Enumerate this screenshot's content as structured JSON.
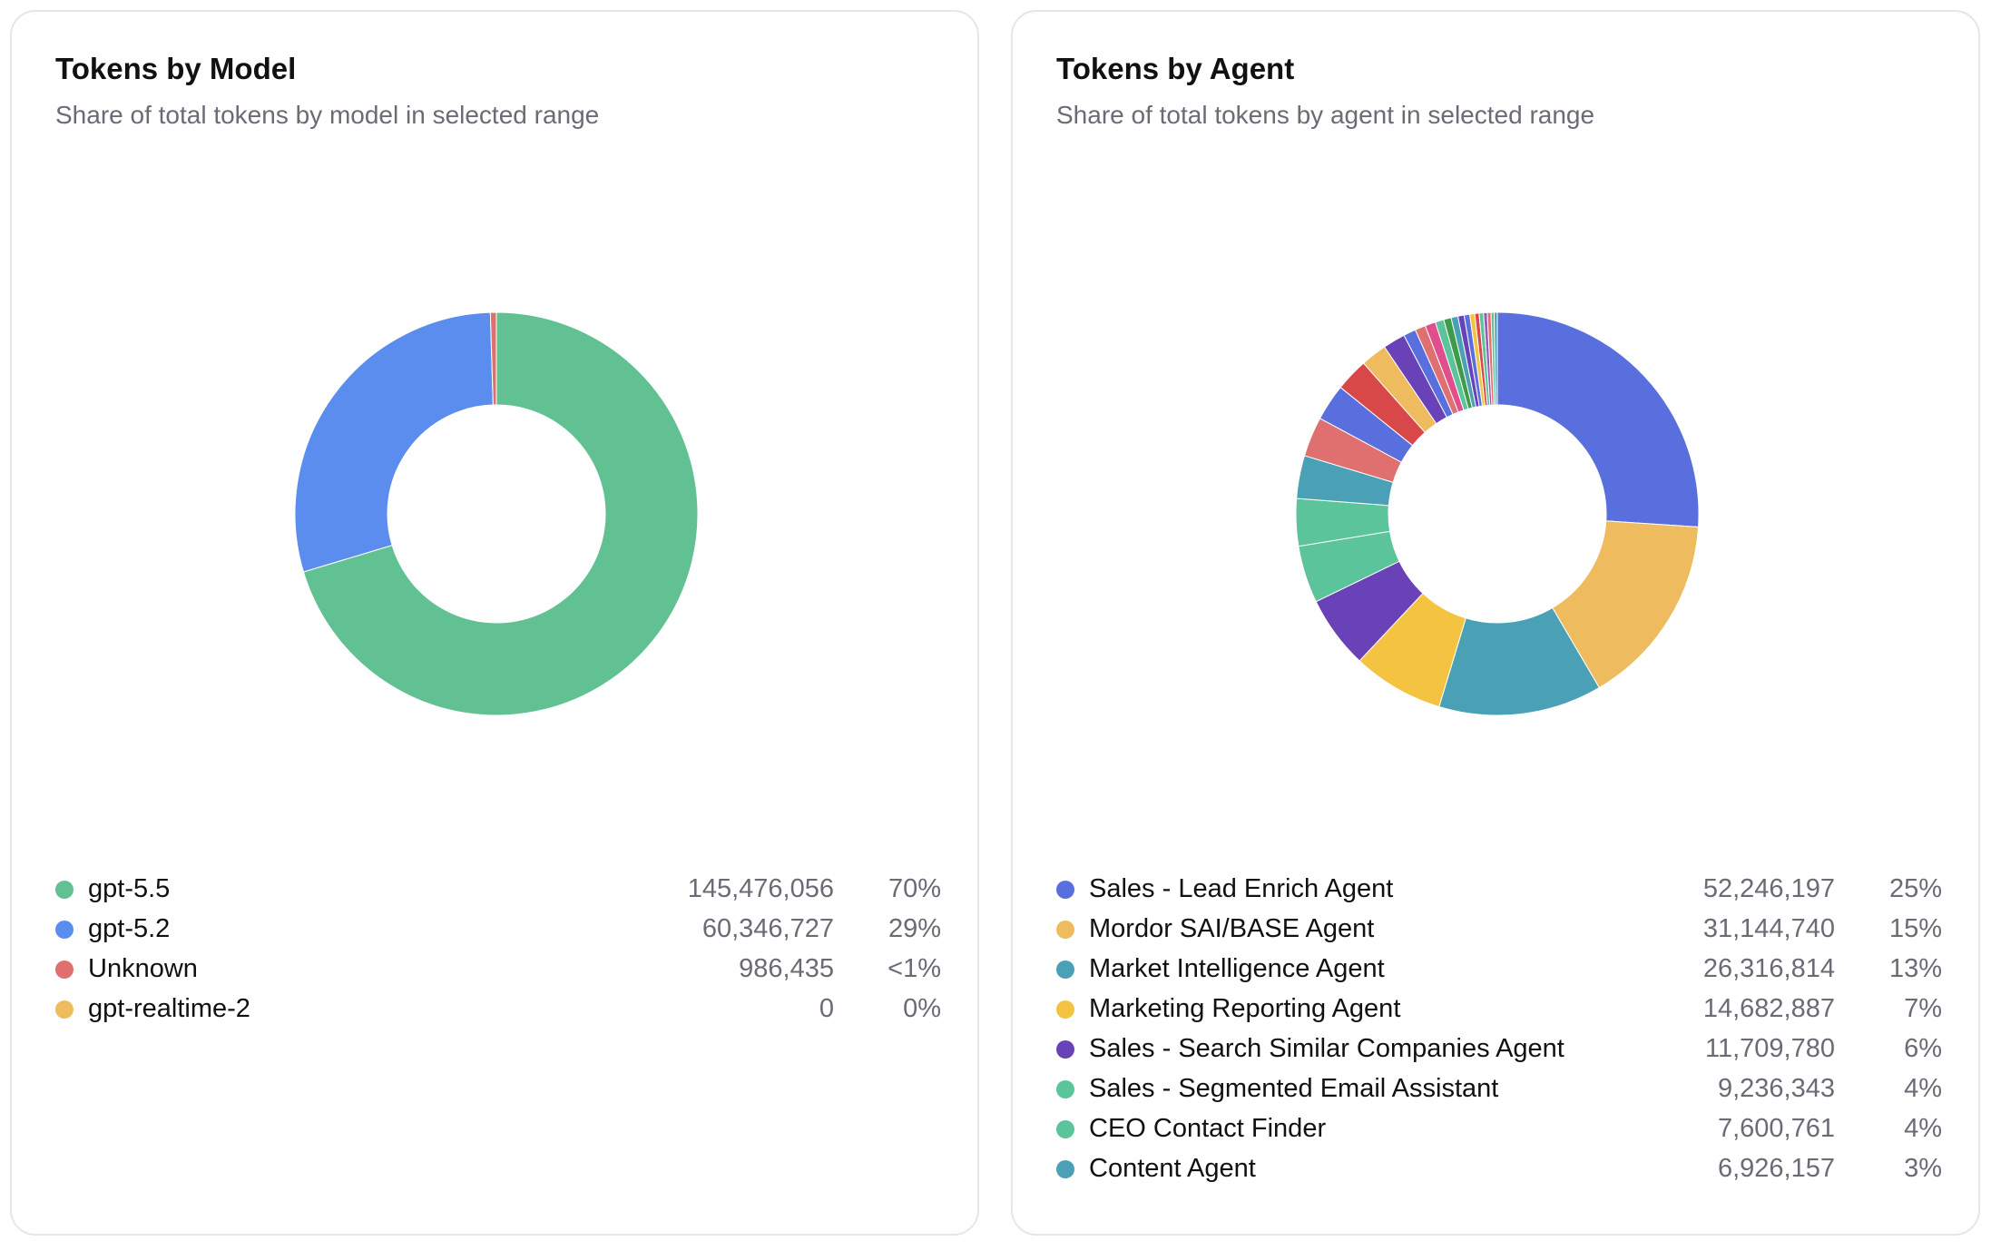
{
  "chart_data": [
    {
      "type": "pie",
      "title": "Tokens by Model",
      "subtitle": "Share of total tokens by model in selected range",
      "categories": [
        "gpt-5.5",
        "gpt-5.2",
        "Unknown",
        "gpt-realtime-2"
      ],
      "values": [
        145476056,
        60346727,
        986435,
        0
      ],
      "values_display": [
        "145,476,056",
        "60,346,727",
        "986,435",
        "0"
      ],
      "percentages": [
        "70%",
        "29%",
        "<1%",
        "0%"
      ],
      "colors": [
        "#62c192",
        "#5b8dee",
        "#e07070",
        "#eebc5e"
      ],
      "legend": "bottom"
    },
    {
      "type": "pie",
      "title": "Tokens by Agent",
      "subtitle": "Share of total tokens by agent in selected range",
      "categories": [
        "Sales - Lead Enrich Agent",
        "Mordor SAI/BASE Agent",
        "Market Intelligence Agent",
        "Marketing Reporting Agent",
        "Sales - Search Similar Companies Agent",
        "Sales - Segmented Email Assistant",
        "CEO Contact Finder",
        "Content Agent"
      ],
      "values": [
        52246197,
        31144740,
        26316814,
        14682887,
        11709780,
        9236343,
        7600761,
        6926157
      ],
      "values_display": [
        "52,246,197",
        "31,144,740",
        "26,316,814",
        "14,682,887",
        "11,709,780",
        "9,236,343",
        "7,600,761",
        "6,926,157"
      ],
      "percentages": [
        "25%",
        "15%",
        "13%",
        "7%",
        "6%",
        "4%",
        "4%",
        "3%"
      ],
      "colors": [
        "#5a6fde",
        "#eebc5e",
        "#4aa0b5",
        "#f5c342",
        "#6a42b8",
        "#5cc49a",
        "#5cc49a",
        "#4aa0b5"
      ],
      "other_slices": {
        "values": [
          6400000,
          5900000,
          5300000,
          4200000,
          3600000,
          2000000,
          1700000,
          1700000,
          1400000,
          1200000,
          1100000,
          1000000,
          900000,
          800000,
          700000,
          700000,
          600000,
          600000,
          500000,
          500000
        ],
        "colors": [
          "#e07070",
          "#5a6fde",
          "#d94848",
          "#eebc5e",
          "#6a42b8",
          "#5a6fde",
          "#e07070",
          "#e04e8e",
          "#5cc49a",
          "#3e9b4a",
          "#4aa0b5",
          "#6a42b8",
          "#5a6fde",
          "#f5c342",
          "#d94848",
          "#5cc49a",
          "#9b59b6",
          "#e07070",
          "#62c192",
          "#4aa0b5"
        ]
      },
      "legend": "bottom"
    }
  ]
}
